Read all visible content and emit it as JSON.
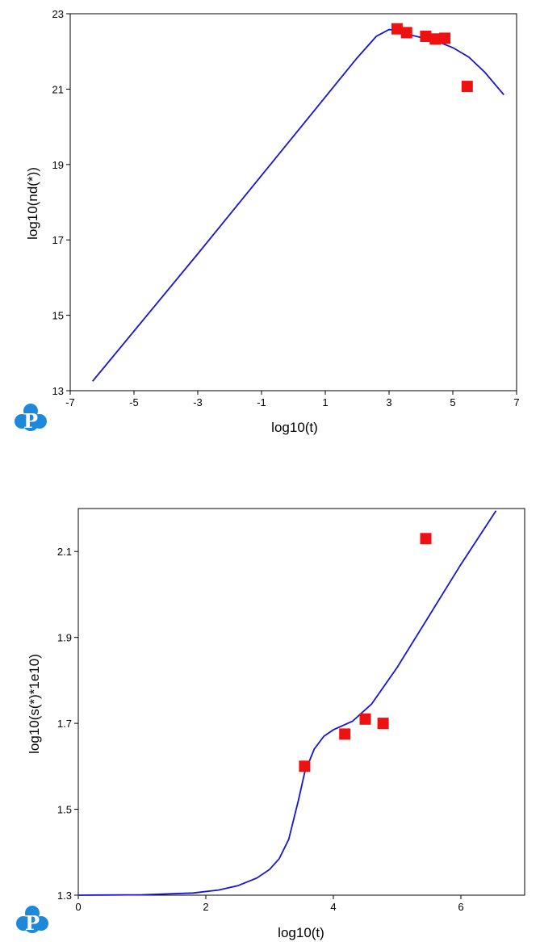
{
  "colors": {
    "curve": "#1515d6",
    "marker": "#ee1111",
    "logo": "#1e88d9"
  },
  "logo": {
    "icon": "cloud-p-logo-icon",
    "letter": "P"
  },
  "chart_data": [
    {
      "type": "line",
      "xlabel": "log10(t)",
      "ylabel": "log10(nd(*))",
      "xlim": [
        -7,
        7
      ],
      "ylim": [
        13,
        23
      ],
      "xticks": [
        "-7",
        "-5",
        "-3",
        "-1",
        "1",
        "3",
        "5",
        "7"
      ],
      "yticks": [
        "13",
        "15",
        "17",
        "19",
        "21",
        "23"
      ],
      "grid": false,
      "series": [
        {
          "kind": "line",
          "x": [
            -6.3,
            -3.0,
            0.0,
            2.0,
            2.6,
            3.0,
            3.2,
            3.6,
            4.0,
            4.4,
            5.0,
            5.5,
            6.0,
            6.6
          ],
          "y": [
            13.25,
            16.63,
            19.75,
            21.83,
            22.4,
            22.58,
            22.56,
            22.45,
            22.37,
            22.3,
            22.1,
            21.85,
            21.45,
            20.85
          ]
        },
        {
          "kind": "scatter",
          "x": [
            3.25,
            3.55,
            4.15,
            4.45,
            4.75,
            5.45
          ],
          "y": [
            22.6,
            22.5,
            22.4,
            22.33,
            22.35,
            21.07
          ]
        }
      ]
    },
    {
      "type": "line",
      "xlabel": "log10(t)",
      "ylabel": "log10(s(*)*1e10)",
      "xlim": [
        0,
        7
      ],
      "ylim": [
        1.3,
        2.2
      ],
      "xticks": [
        "0",
        "2",
        "4",
        "6"
      ],
      "yticks": [
        "1.3",
        "1.5",
        "1.7",
        "1.9",
        "2.1"
      ],
      "grid": false,
      "series": [
        {
          "kind": "line",
          "x": [
            0.0,
            1.0,
            1.8,
            2.2,
            2.5,
            2.8,
            3.0,
            3.15,
            3.3,
            3.45,
            3.55,
            3.7,
            3.85,
            4.0,
            4.3,
            4.6,
            5.0,
            5.5,
            6.0,
            6.55
          ],
          "y": [
            1.3,
            1.301,
            1.305,
            1.312,
            1.322,
            1.34,
            1.36,
            1.385,
            1.43,
            1.52,
            1.585,
            1.64,
            1.67,
            1.685,
            1.705,
            1.745,
            1.83,
            1.95,
            2.07,
            2.195
          ]
        },
        {
          "kind": "scatter",
          "x": [
            3.55,
            4.18,
            4.5,
            4.78,
            5.45
          ],
          "y": [
            1.6,
            1.675,
            1.71,
            1.7,
            2.13
          ]
        }
      ]
    }
  ]
}
